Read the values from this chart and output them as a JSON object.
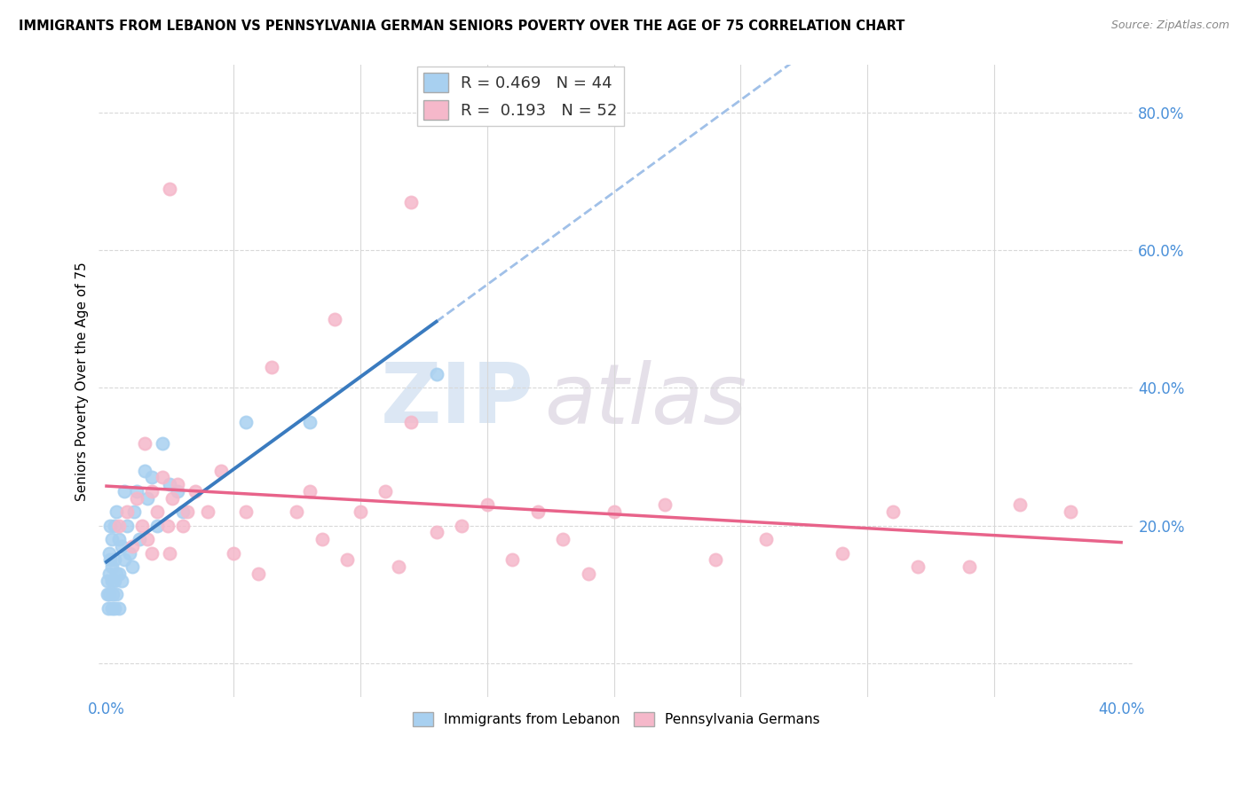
{
  "title": "IMMIGRANTS FROM LEBANON VS PENNSYLVANIA GERMAN SENIORS POVERTY OVER THE AGE OF 75 CORRELATION CHART",
  "source": "Source: ZipAtlas.com",
  "ylabel": "Seniors Poverty Over the Age of 75",
  "xlim": [
    -0.003,
    0.405
  ],
  "ylim": [
    -0.05,
    0.87
  ],
  "blue_R": 0.469,
  "blue_N": 44,
  "pink_R": 0.193,
  "pink_N": 52,
  "blue_color": "#a8d0f0",
  "pink_color": "#f5b8ca",
  "blue_line_color": "#3a7bbf",
  "pink_line_color": "#e8638a",
  "dash_line_color": "#a0c0e8",
  "watermark_color": "#c8d8e8",
  "legend_label_blue": "Immigrants from Lebanon",
  "legend_label_pink": "Pennsylvania Germans",
  "blue_scatter_x": [
    0.0003,
    0.0005,
    0.0007,
    0.001,
    0.001,
    0.0012,
    0.0015,
    0.0015,
    0.002,
    0.002,
    0.002,
    0.002,
    0.0025,
    0.003,
    0.003,
    0.003,
    0.003,
    0.004,
    0.004,
    0.004,
    0.005,
    0.005,
    0.005,
    0.006,
    0.006,
    0.007,
    0.007,
    0.008,
    0.009,
    0.01,
    0.011,
    0.012,
    0.013,
    0.015,
    0.016,
    0.018,
    0.02,
    0.022,
    0.025,
    0.028,
    0.03,
    0.055,
    0.08,
    0.13
  ],
  "blue_scatter_y": [
    0.12,
    0.1,
    0.08,
    0.13,
    0.16,
    0.1,
    0.15,
    0.2,
    0.08,
    0.12,
    0.14,
    0.18,
    0.1,
    0.08,
    0.12,
    0.15,
    0.2,
    0.1,
    0.13,
    0.22,
    0.08,
    0.13,
    0.18,
    0.12,
    0.17,
    0.15,
    0.25,
    0.2,
    0.16,
    0.14,
    0.22,
    0.25,
    0.18,
    0.28,
    0.24,
    0.27,
    0.2,
    0.32,
    0.26,
    0.25,
    0.22,
    0.35,
    0.35,
    0.42
  ],
  "pink_scatter_x": [
    0.005,
    0.008,
    0.01,
    0.012,
    0.014,
    0.015,
    0.016,
    0.018,
    0.018,
    0.02,
    0.022,
    0.024,
    0.025,
    0.026,
    0.028,
    0.03,
    0.032,
    0.035,
    0.04,
    0.045,
    0.05,
    0.055,
    0.06,
    0.065,
    0.075,
    0.08,
    0.085,
    0.09,
    0.095,
    0.1,
    0.11,
    0.115,
    0.12,
    0.13,
    0.14,
    0.15,
    0.16,
    0.17,
    0.18,
    0.19,
    0.2,
    0.22,
    0.24,
    0.26,
    0.29,
    0.31,
    0.32,
    0.34,
    0.36,
    0.38,
    0.025,
    0.12
  ],
  "pink_scatter_y": [
    0.2,
    0.22,
    0.17,
    0.24,
    0.2,
    0.32,
    0.18,
    0.25,
    0.16,
    0.22,
    0.27,
    0.2,
    0.16,
    0.24,
    0.26,
    0.2,
    0.22,
    0.25,
    0.22,
    0.28,
    0.16,
    0.22,
    0.13,
    0.43,
    0.22,
    0.25,
    0.18,
    0.5,
    0.15,
    0.22,
    0.25,
    0.14,
    0.35,
    0.19,
    0.2,
    0.23,
    0.15,
    0.22,
    0.18,
    0.13,
    0.22,
    0.23,
    0.15,
    0.18,
    0.16,
    0.22,
    0.14,
    0.14,
    0.23,
    0.22,
    0.69,
    0.67
  ],
  "y_ticks": [
    0.0,
    0.2,
    0.4,
    0.6,
    0.8
  ],
  "y_tick_labels": [
    "",
    "20.0%",
    "40.0%",
    "60.0%",
    "80.0%"
  ],
  "x_ticks_show": [
    0.0,
    0.4
  ],
  "x_tick_labels": [
    "0.0%",
    "40.0%"
  ]
}
